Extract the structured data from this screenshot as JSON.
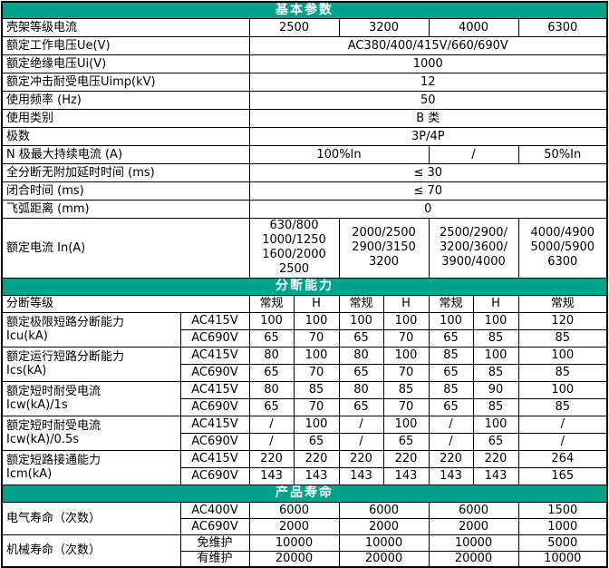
{
  "colors": {
    "section_header_bg": "#00A28C",
    "section_header_text": "#FFFFFF"
  },
  "basic": {
    "title": "基本参数",
    "frame": {
      "label": "壳架等级电流",
      "values": [
        "2500",
        "3200",
        "4000",
        "6300"
      ]
    },
    "rows_top": [
      {
        "label": "额定工作电压Ue(V)",
        "value": "AC380/400/415V/660/690V"
      },
      {
        "label": "额定绝缘电压Ui(V)",
        "value": "1000"
      },
      {
        "label": "额定冲击耐受电压Uimp(kV)",
        "value": "12"
      },
      {
        "label": "使用频率 (Hz)",
        "value": "50"
      },
      {
        "label": "使用类别",
        "value": "B 类"
      },
      {
        "label": "极数",
        "value": "3P/4P"
      }
    ],
    "n_pole": {
      "label": "N 极最大持续电流 (A)",
      "col12": "100%In",
      "col3": "/",
      "col4": "50%In"
    },
    "rows_bottom": [
      {
        "label": "全分断无附加延时时间 (ms)",
        "value": "≤ 30"
      },
      {
        "label": "闭合时间 (ms)",
        "value": "≤ 70"
      },
      {
        "label": "飞弧距离 (mm)",
        "value": "0"
      }
    ],
    "rated_current": {
      "label": "额定电流 In(A)",
      "values": [
        "630/800\n1000/1250\n1600/2000\n2500",
        "2000/2500\n2900/3150\n3200",
        "2500/2900/\n3200/3600/\n3900/4000",
        "4000/4900\n5000/5900\n6300"
      ]
    }
  },
  "breaking": {
    "title": "分断能力",
    "grade_label": "分断等级",
    "grade_cols": [
      "常规",
      "H",
      "常规",
      "H",
      "常规",
      "H",
      "常规"
    ],
    "rows": [
      {
        "label": "额定极限短路分断能力\nIcu(kA)",
        "r1": {
          "name": "AC415V",
          "v": [
            "100",
            "100",
            "100",
            "100",
            "100",
            "100",
            "120"
          ]
        },
        "r2": {
          "name": "AC690V",
          "v": [
            "65",
            "70",
            "65",
            "70",
            "65",
            "85",
            "85"
          ]
        }
      },
      {
        "label": "额定运行短路分断能力\nIcs(kA)",
        "r1": {
          "name": "AC415V",
          "v": [
            "80",
            "100",
            "80",
            "100",
            "85",
            "100",
            "100"
          ]
        },
        "r2": {
          "name": "AC690V",
          "v": [
            "65",
            "70",
            "65",
            "70",
            "65",
            "85",
            "85"
          ]
        }
      },
      {
        "label": "额定短时耐受电流\nIcw(kA)/1s",
        "r1": {
          "name": "AC415V",
          "v": [
            "80",
            "85",
            "80",
            "85",
            "85",
            "90",
            "100"
          ]
        },
        "r2": {
          "name": "AC690V",
          "v": [
            "65",
            "70",
            "65",
            "70",
            "65",
            "85",
            "85"
          ]
        }
      },
      {
        "label": "额定短时耐受电流\nIcw(kA)/0.5s",
        "r1": {
          "name": "AC415V",
          "v": [
            "/",
            "100",
            "/",
            "100",
            "/",
            "100",
            "/"
          ]
        },
        "r2": {
          "name": "AC690V",
          "v": [
            "/",
            "65",
            "/",
            "65",
            "/",
            "65",
            "/"
          ]
        }
      },
      {
        "label": "额定短路接通能力\nIcm(kA)",
        "r1": {
          "name": "AC415V",
          "v": [
            "220",
            "220",
            "220",
            "220",
            "220",
            "220",
            "264"
          ]
        },
        "r2": {
          "name": "AC690V",
          "v": [
            "143",
            "143",
            "143",
            "143",
            "143",
            "143",
            "165"
          ]
        }
      }
    ]
  },
  "life": {
    "title": "产品寿命",
    "rows": [
      {
        "label": "电气寿命（次数）",
        "r1": {
          "name": "AC400V",
          "v": [
            "6000",
            "6000",
            "6000",
            "1500"
          ]
        },
        "r2": {
          "name": "AC690V",
          "v": [
            "2000",
            "2000",
            "2000",
            "1000"
          ]
        }
      },
      {
        "label": "机械寿命（次数）",
        "r1": {
          "name": "免维护",
          "v": [
            "10000",
            "10000",
            "10000",
            "5000"
          ]
        },
        "r2": {
          "name": "有维护",
          "v": [
            "20000",
            "20000",
            "20000",
            "10000"
          ]
        }
      }
    ]
  }
}
